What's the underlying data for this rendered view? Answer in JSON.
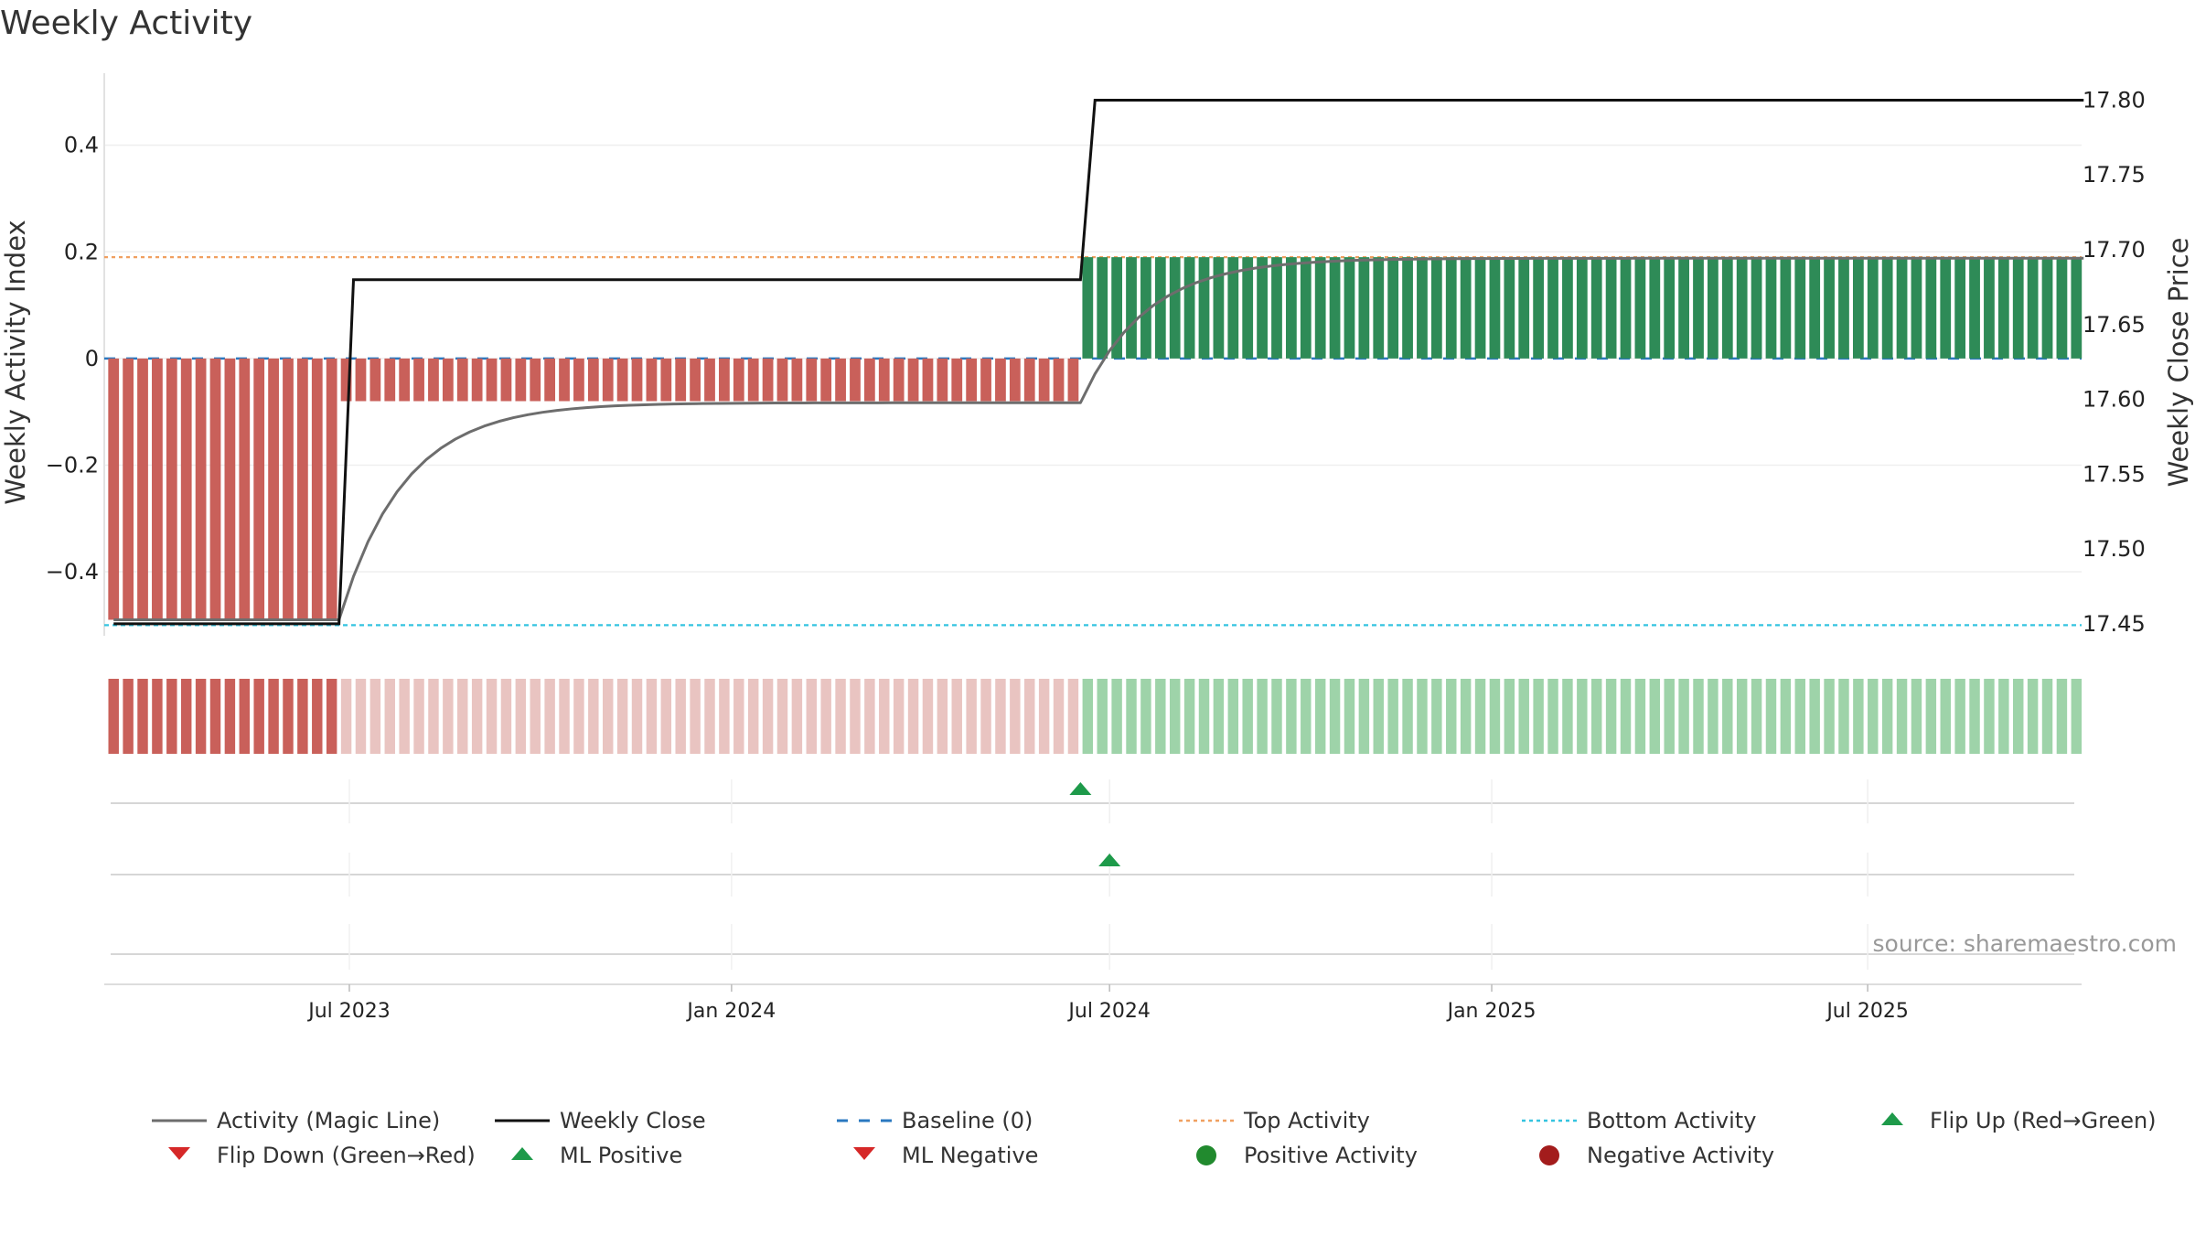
{
  "chart_data": {
    "type": "bar",
    "title": "Weekly Activity",
    "ylabel": "Weekly Activity Index",
    "y2label": "Weekly Close Price",
    "source": "source: sharemaestro.com",
    "ylim": [
      -0.52,
      0.535
    ],
    "y2lim": [
      17.442,
      17.818
    ],
    "xlim": [
      "2023-03-05",
      "2025-10-12"
    ],
    "yticks": [
      {
        "v": 0.4,
        "label": "0.4"
      },
      {
        "v": 0.2,
        "label": "0.2"
      },
      {
        "v": 0.0,
        "label": "0"
      },
      {
        "v": -0.2,
        "label": "−0.2"
      },
      {
        "v": -0.4,
        "label": "−0.4"
      }
    ],
    "y2ticks": [
      {
        "v": 17.8,
        "label": "17.80"
      },
      {
        "v": 17.75,
        "label": "17.75"
      },
      {
        "v": 17.7,
        "label": "17.70"
      },
      {
        "v": 17.65,
        "label": "17.65"
      },
      {
        "v": 17.6,
        "label": "17.60"
      },
      {
        "v": 17.55,
        "label": "17.55"
      },
      {
        "v": 17.5,
        "label": "17.50"
      },
      {
        "v": 17.45,
        "label": "17.45"
      }
    ],
    "xticks": [
      {
        "date": "2023-07-01",
        "label": "Jul 2023"
      },
      {
        "date": "2024-01-01",
        "label": "Jan 2024"
      },
      {
        "date": "2024-07-01",
        "label": "Jul 2024"
      },
      {
        "date": "2025-01-01",
        "label": "Jan 2025"
      },
      {
        "date": "2025-07-01",
        "label": "Jul 2025"
      }
    ],
    "first_week": "2023-03-06",
    "weeks": 136,
    "segments": [
      {
        "weeks": 16,
        "activity": -0.49,
        "close": 17.45,
        "state": "strong-negative"
      },
      {
        "weeks": 51,
        "activity": -0.08,
        "close": 17.68,
        "state": "weak-negative"
      },
      {
        "weeks": 69,
        "activity": 0.19,
        "close": 17.8,
        "state": "positive"
      }
    ],
    "magic_line": {
      "start": -0.49,
      "levels": [
        -0.49,
        -0.083,
        0.188
      ],
      "rate": 0.2
    },
    "reference_lines": {
      "baseline": 0,
      "top": 0.19,
      "bottom": -0.5
    },
    "flip_up_dates": [
      "2024-06-17",
      "2024-07-01"
    ],
    "colors": {
      "negative_bar": "#c9605a",
      "negative_bar_light": "#e9c4c1",
      "positive_bar": "#2e8b57",
      "positive_bar_light": "#9ed3a9",
      "magic_line": "#6d6d6d",
      "weekly_close": "#111111",
      "baseline": "#2a78c0",
      "top": "#f0a060",
      "bottom": "#35c4e0",
      "flip_up": "#1e9a4a",
      "flip_down": "#d62828",
      "positive_dot": "#218a2e",
      "negative_dot": "#a31c1c"
    },
    "legend": [
      {
        "label": "Activity (Magic Line)",
        "symbol": "line-solid",
        "color": "#6d6d6d"
      },
      {
        "label": "Weekly Close",
        "symbol": "line-solid",
        "color": "#111111"
      },
      {
        "label": "Baseline (0)",
        "symbol": "line-dashed",
        "color": "#2a78c0"
      },
      {
        "label": "Top Activity",
        "symbol": "line-dotted",
        "color": "#f0a060"
      },
      {
        "label": "Bottom Activity",
        "symbol": "line-dotted",
        "color": "#35c4e0"
      },
      {
        "label": "Flip Up (Red→Green)",
        "symbol": "triangle-up",
        "color": "#1e9a4a"
      },
      {
        "label": "Flip Down (Green→Red)",
        "symbol": "triangle-down",
        "color": "#d62828"
      },
      {
        "label": "ML Positive",
        "symbol": "triangle-up",
        "color": "#1e9a4a"
      },
      {
        "label": "ML Negative",
        "symbol": "triangle-down",
        "color": "#d62828"
      },
      {
        "label": "Positive Activity",
        "symbol": "circle",
        "color": "#218a2e"
      },
      {
        "label": "Negative Activity",
        "symbol": "circle",
        "color": "#a31c1c"
      }
    ]
  }
}
